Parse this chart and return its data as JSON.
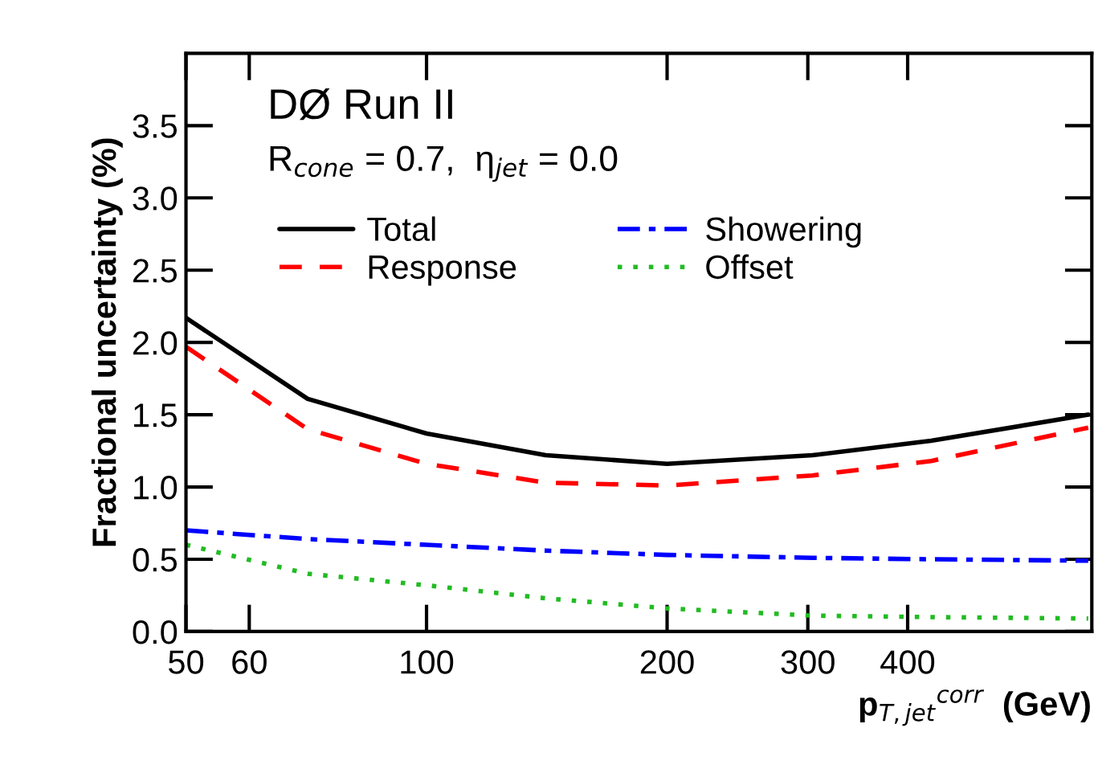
{
  "chart_data": {
    "type": "line",
    "xlabel": "p$_{T,jet}$$^{corr}$  (GeV)",
    "ylabel": "Fractional uncertainty (%)",
    "annotations": [
      "DØ Run II",
      "R$_{cone}$ = 0.7,  η$_{jet}$ = 0.0"
    ],
    "x": [
      50,
      71,
      100,
      141,
      200,
      304,
      428,
      673
    ],
    "series": [
      {
        "name": "Total",
        "color": "#000000",
        "line_style": "solid",
        "values": [
          2.17,
          1.61,
          1.37,
          1.22,
          1.16,
          1.22,
          1.32,
          1.5
        ]
      },
      {
        "name": "Response",
        "color": "#ff0000",
        "line_style": "dashed",
        "values": [
          1.97,
          1.4,
          1.16,
          1.03,
          1.01,
          1.08,
          1.18,
          1.41
        ]
      },
      {
        "name": "Showering",
        "color": "#0000ff",
        "line_style": "dashdot",
        "values": [
          0.7,
          0.64,
          0.6,
          0.56,
          0.53,
          0.51,
          0.5,
          0.49
        ]
      },
      {
        "name": "Offset",
        "color": "#22bb22",
        "line_style": "dotted",
        "values": [
          0.6,
          0.4,
          0.32,
          0.23,
          0.16,
          0.11,
          0.1,
          0.09
        ]
      }
    ],
    "log": "x",
    "xlim": [
      50,
      680
    ],
    "xticks": [
      50,
      60,
      100,
      200,
      300,
      400
    ],
    "ylim": [
      0,
      4.0
    ],
    "yticks": [
      {
        "value": 0,
        "label": "0.0"
      },
      {
        "value": 0.5,
        "label": "0.5"
      },
      {
        "value": 1.0,
        "label": "1.0"
      },
      {
        "value": 1.5,
        "label": "1.5"
      },
      {
        "value": 2.0,
        "label": "2.0"
      },
      {
        "value": 2.5,
        "label": "2.5"
      },
      {
        "value": 3.0,
        "label": "3.0"
      },
      {
        "value": 3.5,
        "label": "3.5"
      }
    ],
    "grid": false,
    "legend": "top left",
    "marker": "none"
  }
}
